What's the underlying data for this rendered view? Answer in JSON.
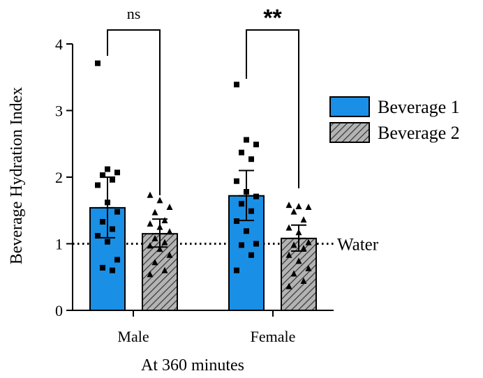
{
  "chart_data": {
    "type": "bar",
    "xlabel": "At 360 minutes",
    "ylabel": "Beverage Hydration Index",
    "ylim": [
      0,
      4
    ],
    "yticks": [
      0,
      1,
      2,
      3,
      4
    ],
    "categories": [
      "Male",
      "Female"
    ],
    "series": [
      {
        "name": "Beverage 1",
        "color": "#1a8fe6",
        "pattern": "solid",
        "marker": "square",
        "values": [
          1.54,
          1.72
        ],
        "sd_low": [
          1.09,
          1.35
        ],
        "sd_high": [
          2.0,
          2.1
        ],
        "points": [
          [
            3.71,
            2.12,
            2.07,
            2.03,
            1.96,
            1.88,
            1.62,
            1.48,
            1.33,
            1.22,
            1.12,
            1.03,
            0.76,
            0.64,
            0.6
          ],
          [
            3.39,
            2.56,
            2.49,
            2.37,
            2.27,
            1.94,
            1.78,
            1.71,
            1.6,
            1.49,
            1.34,
            1.19,
            1.0,
            0.98,
            0.83,
            0.6
          ]
        ]
      },
      {
        "name": "Beverage 2",
        "color": "#b3b3b3",
        "pattern": "diagonal-hatch",
        "marker": "triangle",
        "values": [
          1.15,
          1.08
        ],
        "sd_low": [
          0.95,
          0.89
        ],
        "sd_high": [
          1.37,
          1.28
        ],
        "points": [
          [
            1.73,
            1.65,
            1.55,
            1.47,
            1.35,
            1.3,
            1.25,
            1.18,
            1.08,
            1.02,
            0.97,
            0.92,
            0.83,
            0.72,
            0.6,
            0.54
          ],
          [
            1.58,
            1.56,
            1.55,
            1.48,
            1.36,
            1.24,
            1.17,
            1.02,
            0.98,
            0.93,
            0.83,
            0.74,
            0.63,
            0.55,
            0.44,
            0.36
          ]
        ]
      }
    ],
    "reference_line": {
      "value": 1,
      "label": "Water",
      "style": "dotted"
    },
    "significance": [
      {
        "group": "Male",
        "label": "ns"
      },
      {
        "group": "Female",
        "label": "**"
      }
    ],
    "legend": {
      "position": "right",
      "entries": [
        "Beverage 1",
        "Beverage 2"
      ]
    }
  }
}
